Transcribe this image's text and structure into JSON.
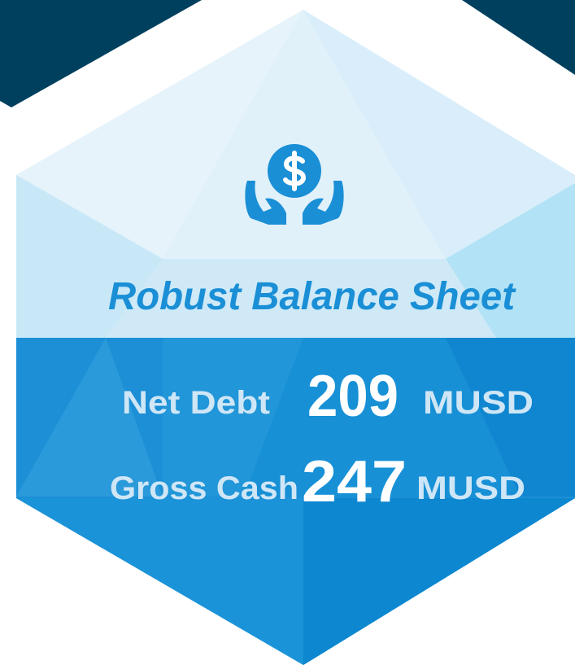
{
  "title": "Robust Balance Sheet",
  "metrics": [
    {
      "label": "Net Debt",
      "value": 209,
      "unit": "MUSD"
    },
    {
      "label": "Gross Cash",
      "value": 247,
      "unit": "MUSD"
    }
  ]
}
